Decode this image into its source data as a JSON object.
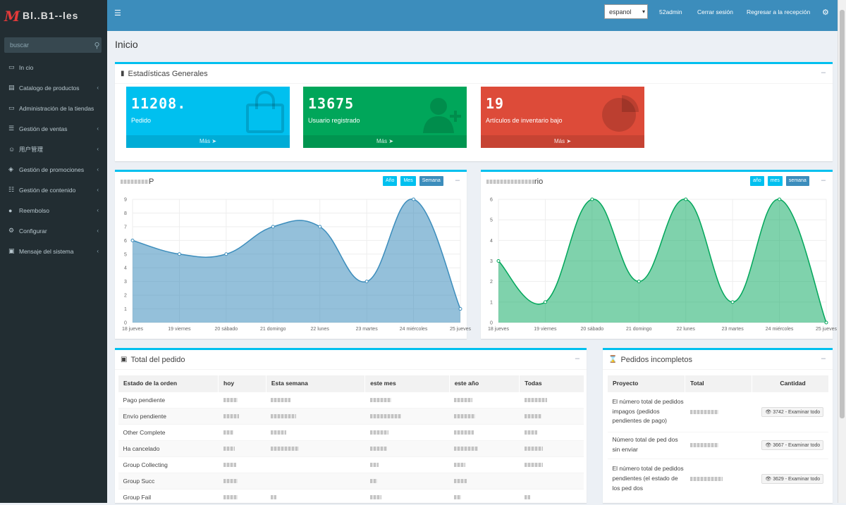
{
  "sidebar": {
    "logo_text": "Bl..B1--les",
    "search_placeholder": "buscar",
    "items": [
      {
        "label": "In cio",
        "icon": "monitor-icon",
        "has_children": false
      },
      {
        "label": "Catalogo de productos",
        "icon": "book-icon",
        "has_children": true
      },
      {
        "label": "Administración de la tiendas",
        "icon": "monitor-icon",
        "has_children": false
      },
      {
        "label": "Gestión de ventas",
        "icon": "cart-icon",
        "has_children": true
      },
      {
        "label": "用户管理",
        "icon": "user-icon",
        "has_children": true
      },
      {
        "label": "Gestión de promociones",
        "icon": "tag-icon",
        "has_children": true
      },
      {
        "label": "Gestión de contenido",
        "icon": "sitemap-icon",
        "has_children": true
      },
      {
        "label": "Reembolso",
        "icon": "circle-icon",
        "has_children": true
      },
      {
        "label": "Configurar",
        "icon": "cogs-icon",
        "has_children": true
      },
      {
        "label": "Mensaje del sistema",
        "icon": "cube-icon",
        "has_children": true
      }
    ]
  },
  "header": {
    "language": "espanol",
    "user": "52admin",
    "logout": "Cerrar sesión",
    "back_to_frontend": "Regresar a la recepción"
  },
  "page_title": "Inicio",
  "stats": {
    "title": "Estadísticas Generales",
    "tiles": [
      {
        "count": "11208.",
        "label": "Pedido",
        "more": "Más",
        "color": "#00c0ef"
      },
      {
        "count": "13675",
        "label": "Usuario registrado",
        "more": "Más",
        "color": "#00a65a"
      },
      {
        "count": "19",
        "label": "Artículos de inventario bajo",
        "more": "Más",
        "color": "#dd4b39"
      }
    ]
  },
  "charts": {
    "left": {
      "title": "P",
      "buttons": [
        "Año",
        "Mes",
        "Semana"
      ]
    },
    "right": {
      "title": "rio",
      "buttons": [
        "año",
        "mes",
        "semana"
      ]
    }
  },
  "chart_data": [
    {
      "type": "area",
      "x": [
        "18 jueves",
        "19 viernes",
        "20 sábado",
        "21 domingo",
        "22 lunes",
        "23 martes",
        "24 miércoles",
        "25 jueves"
      ],
      "values": [
        6,
        5,
        5,
        7,
        7,
        3,
        9,
        1
      ],
      "ylim": [
        0,
        9
      ],
      "color": "#3c8dbc"
    },
    {
      "type": "area",
      "x": [
        "18 jueves",
        "19 viernes",
        "20 sábado",
        "21 domingo",
        "22 lunes",
        "23 martes",
        "24 miércoles",
        "25 jueves"
      ],
      "values": [
        3,
        1,
        6,
        2,
        6,
        1,
        6,
        0
      ],
      "ylim": [
        0,
        6
      ],
      "color": "#00a65a"
    }
  ],
  "orders_total": {
    "title": "Total del pedido",
    "columns": [
      "Estado de la orden",
      "hoy",
      "Esta semana",
      "este mes",
      "este año",
      "Todas"
    ],
    "rows": [
      "Pago pendiente",
      "Envío pendiente",
      "Other Complete",
      "Ha cancelado",
      "Group Collecting",
      "Group Succ",
      "Group Fail"
    ]
  },
  "incomplete": {
    "title": "Pedidos incompletos",
    "columns": [
      "Proyecto",
      "Total",
      "Cantidad"
    ],
    "rows": [
      {
        "project": "El número total de pedidos impagos (pedidos pendientes de pago)",
        "button": "3742 - Examinar todo"
      },
      {
        "project": "Número total de ped dos sin enviar",
        "button": "3667 - Examinar todo"
      },
      {
        "project": "El número total de pedidos pendientes (el estado de los ped dos",
        "button": "3629 - Examinar todo"
      }
    ]
  }
}
